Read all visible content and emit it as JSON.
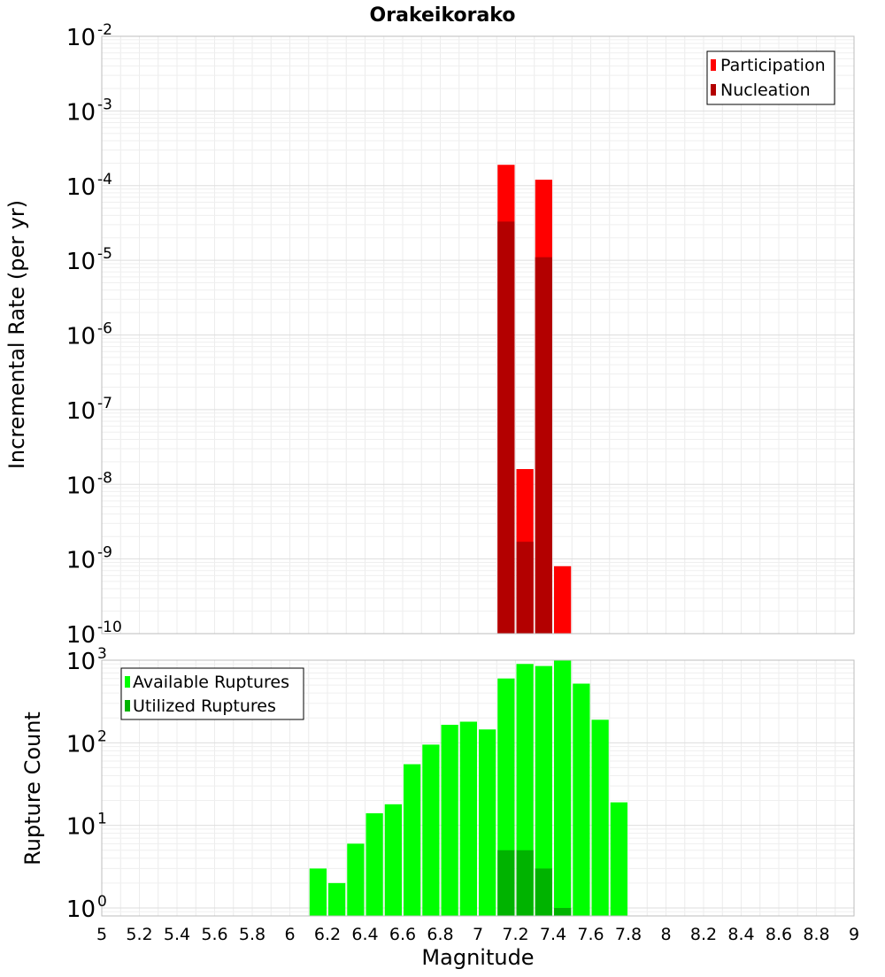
{
  "title": "Orakeikorako",
  "chart_data": [
    {
      "type": "bar",
      "title": "Orakeikorako",
      "xlabel": "",
      "ylabel": "Incremental Rate (per yr)",
      "yscale": "log",
      "ylim": [
        1e-10,
        0.01
      ],
      "xlim": [
        5,
        9
      ],
      "bar_width": 0.1,
      "legend": [
        "Participation",
        "Nucleation"
      ],
      "legend_position": "top-right",
      "grid": true,
      "y_tick_labels": [
        {
          "base": "10",
          "exp": "-10",
          "value": 1e-10
        },
        {
          "base": "10",
          "exp": "-9",
          "value": 1e-09
        },
        {
          "base": "10",
          "exp": "-8",
          "value": 1e-08
        },
        {
          "base": "10",
          "exp": "-7",
          "value": 1e-07
        },
        {
          "base": "10",
          "exp": "-6",
          "value": 1e-06
        },
        {
          "base": "10",
          "exp": "-5",
          "value": 1e-05
        },
        {
          "base": "10",
          "exp": "-4",
          "value": 0.0001
        },
        {
          "base": "10",
          "exp": "-3",
          "value": 0.001
        },
        {
          "base": "10",
          "exp": "-2",
          "value": 0.01
        }
      ],
      "series": [
        {
          "name": "Participation",
          "color": "#ff0000",
          "x": [
            7.15,
            7.25,
            7.35,
            7.45
          ],
          "values": [
            0.00019,
            1.6e-08,
            0.00012,
            8e-10
          ]
        },
        {
          "name": "Nucleation",
          "color": "#b30000",
          "x": [
            7.15,
            7.25,
            7.35
          ],
          "values": [
            3.3e-05,
            1.7e-09,
            1.1e-05
          ]
        }
      ]
    },
    {
      "type": "bar",
      "title": "",
      "xlabel": "Magnitude",
      "ylabel": "Rupture Count",
      "yscale": "log",
      "ylim": [
        0.8,
        1000
      ],
      "xlim": [
        5,
        9
      ],
      "bar_width": 0.1,
      "legend": [
        "Available Ruptures",
        "Utilized Ruptures"
      ],
      "legend_position": "top-left",
      "grid": true,
      "x_ticks": [
        5,
        5.2,
        5.4,
        5.6,
        5.8,
        6,
        6.2,
        6.4,
        6.6,
        6.8,
        7,
        7.2,
        7.4,
        7.6,
        7.8,
        8,
        8.2,
        8.4,
        8.6,
        8.8,
        9
      ],
      "x_tick_labels": [
        "5",
        "5.2",
        "5.4",
        "5.6",
        "5.8",
        "6",
        "6.2",
        "6.4",
        "6.6",
        "6.8",
        "7",
        "7.2",
        "7.4",
        "7.6",
        "7.8",
        "8",
        "8.2",
        "8.4",
        "8.6",
        "8.8",
        "9"
      ],
      "y_tick_labels": [
        {
          "base": "10",
          "exp": "0",
          "value": 1
        },
        {
          "base": "10",
          "exp": "1",
          "value": 10
        },
        {
          "base": "10",
          "exp": "2",
          "value": 100
        },
        {
          "base": "10",
          "exp": "3",
          "value": 1000
        }
      ],
      "series": [
        {
          "name": "Available Ruptures",
          "color": "#00ff00",
          "x": [
            6.15,
            6.25,
            6.35,
            6.45,
            6.55,
            6.65,
            6.75,
            6.85,
            6.95,
            7.05,
            7.15,
            7.25,
            7.35,
            7.45,
            7.55,
            7.65,
            7.75
          ],
          "values": [
            3,
            2,
            6,
            14,
            18,
            55,
            95,
            165,
            180,
            145,
            600,
            900,
            850,
            1000,
            520,
            190,
            19
          ]
        },
        {
          "name": "Utilized Ruptures",
          "color": "#00b300",
          "x": [
            7.15,
            7.25,
            7.35,
            7.45
          ],
          "values": [
            5,
            5,
            3,
            1
          ]
        }
      ]
    }
  ]
}
